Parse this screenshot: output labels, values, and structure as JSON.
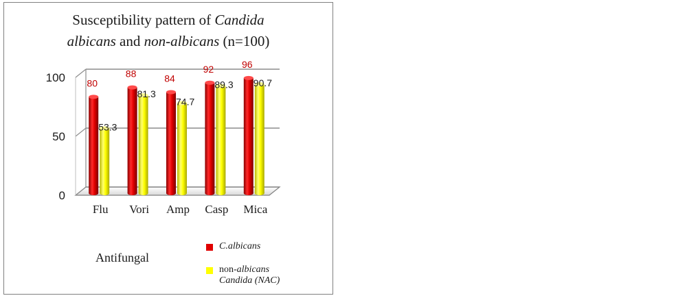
{
  "chart_data": {
    "type": "bar",
    "title": {
      "part1": "Susceptibility pattern of ",
      "part2": "Candida",
      "part3": "albicans",
      "part4": " and ",
      "part5": "non-albicans",
      "part6": " (n=100)"
    },
    "xlabel": "Antifungal",
    "ylabel": "",
    "ylim": [
      0,
      100
    ],
    "yticks": [
      "0",
      "50",
      "100"
    ],
    "categories": [
      "Flu",
      "Vori",
      "Amp",
      "Casp",
      "Mica"
    ],
    "series": [
      {
        "name": "C.albicans",
        "color": "#e00000",
        "values": [
          80,
          88,
          84,
          92,
          96
        ],
        "labels": [
          "80",
          "88",
          "84",
          "92",
          "96"
        ]
      },
      {
        "name": "non-albicans Candida (NAC)",
        "color": "#ffff00",
        "values": [
          53.3,
          81.3,
          74.7,
          89.3,
          90.7
        ],
        "labels": [
          "53.3",
          "81.3",
          "74.7",
          "89.3",
          "90.7"
        ]
      }
    ],
    "grid": true,
    "legend_position": "bottom-right",
    "bar_style": "3d-cylinder"
  },
  "legend": {
    "albicans": "C.albicans",
    "nac_line1_prefix": "non-",
    "nac_line1_italic": "albicans",
    "nac_line2": "Candida (NAC)"
  }
}
